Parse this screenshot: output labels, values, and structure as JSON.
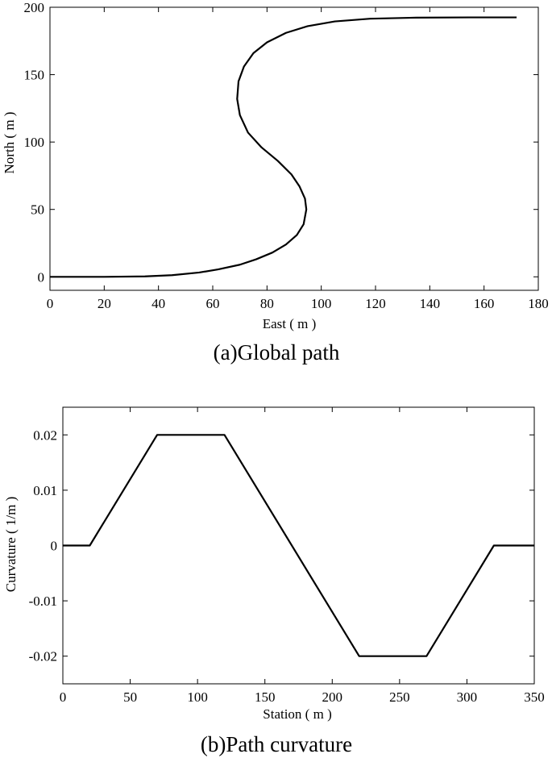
{
  "chart_data": [
    {
      "type": "line",
      "caption": "(a)Global path",
      "xlabel": "East ( m )",
      "ylabel": "North ( m )",
      "xlim": [
        0,
        180
      ],
      "ylim": [
        -10,
        200
      ],
      "xticks": [
        0,
        20,
        40,
        60,
        80,
        100,
        120,
        140,
        160,
        180
      ],
      "yticks": [
        0,
        50,
        100,
        150,
        200
      ],
      "grid": false,
      "series": [
        {
          "color": "#000000",
          "x": [
            0,
            20,
            35,
            45,
            55,
            62,
            70,
            76,
            82,
            87,
            91,
            93.5,
            94.5,
            94,
            92,
            89,
            84,
            78,
            73,
            70,
            69,
            69.5,
            71.5,
            75,
            80,
            87,
            95,
            105,
            118,
            135,
            155,
            172
          ],
          "y": [
            0,
            0,
            0.3,
            1.2,
            3.2,
            5.5,
            9,
            13,
            18,
            24,
            31,
            39,
            50,
            58,
            67,
            76,
            86,
            96,
            107,
            120,
            132,
            145,
            156,
            166,
            174,
            181,
            186,
            189.5,
            191.5,
            192.3,
            192.5,
            192.5
          ]
        }
      ]
    },
    {
      "type": "line",
      "caption": "(b)Path curvature",
      "xlabel": "Station ( m )",
      "ylabel": "Curvature ( 1/m )",
      "xlim": [
        0,
        350
      ],
      "ylim": [
        -0.025,
        0.025
      ],
      "xticks": [
        0,
        50,
        100,
        150,
        200,
        250,
        300,
        350
      ],
      "yticks": [
        -0.02,
        -0.01,
        0,
        0.01,
        0.02
      ],
      "ytick_labels": [
        "-0.02",
        "-0.01",
        "0",
        "0.01",
        "0.02"
      ],
      "grid": false,
      "series": [
        {
          "color": "#000000",
          "x": [
            0,
            20,
            70,
            120,
            220,
            270,
            320,
            350
          ],
          "y": [
            0,
            0,
            0.02,
            0.02,
            -0.02,
            -0.02,
            0,
            0
          ]
        }
      ]
    }
  ]
}
